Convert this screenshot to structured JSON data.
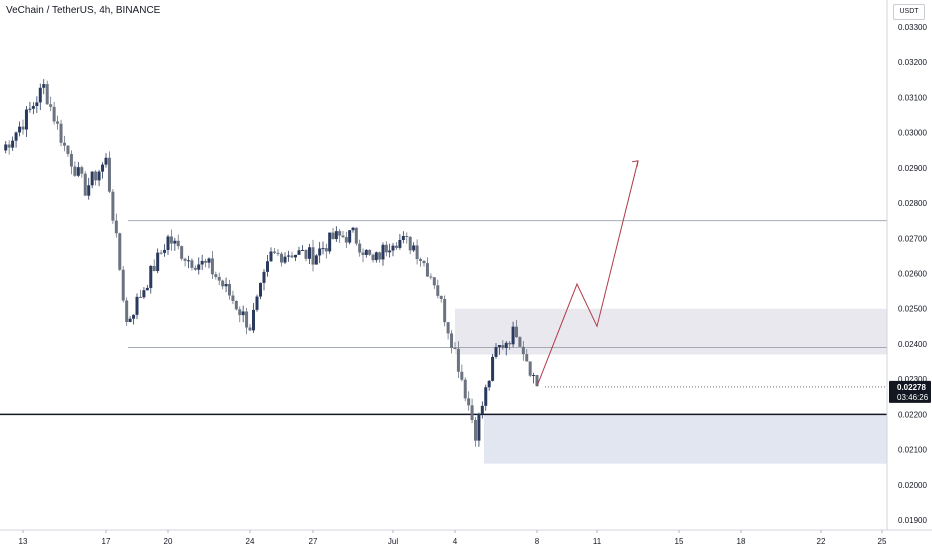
{
  "header": {
    "title": "VeChain / TetherUS, 4h, BINANCE"
  },
  "price_scale": {
    "currency": "USDT",
    "ticks": [
      "0.03300",
      "0.03200",
      "0.03100",
      "0.03000",
      "0.02900",
      "0.02800",
      "0.02700",
      "0.02600",
      "0.02500",
      "0.02400",
      "0.02300",
      "0.02200",
      "0.02100",
      "0.02000",
      "0.01900"
    ],
    "last_price": "0.02278",
    "countdown": "03:46:26"
  },
  "time_axis": {
    "ticks": [
      "13",
      "17",
      "20",
      "24",
      "27",
      "Jul",
      "4",
      "8",
      "11",
      "15",
      "18",
      "22",
      "25"
    ]
  },
  "colors": {
    "bull": "#2a3a5e",
    "bear": "#6b7280",
    "zone_upper": "#e6e4ec",
    "zone_lower": "#dde2ee",
    "projection": "#b03a48",
    "level_line": "#9aa0aa",
    "key_level": "#131722"
  },
  "chart_data": {
    "type": "candlestick",
    "symbol": "VeChain / TetherUS",
    "interval": "4h",
    "exchange": "BINANCE",
    "x_axis": "date (June–July)",
    "ylim": [
      0.0188,
      0.0333
    ],
    "y_ticks": [
      0.033,
      0.032,
      0.031,
      0.03,
      0.029,
      0.028,
      0.027,
      0.026,
      0.025,
      0.024,
      0.023,
      0.022,
      0.021,
      0.02,
      0.019
    ],
    "close_path": [
      {
        "date": "Jun 12",
        "close": 0.0295
      },
      {
        "date": "Jun 13",
        "close": 0.0303
      },
      {
        "date": "Jun 14",
        "close": 0.0313
      },
      {
        "date": "Jun 15",
        "close": 0.0296
      },
      {
        "date": "Jun 16",
        "close": 0.0284
      },
      {
        "date": "Jun 17",
        "close": 0.0292
      },
      {
        "date": "Jun 18",
        "close": 0.0246
      },
      {
        "date": "Jun 19",
        "close": 0.0258
      },
      {
        "date": "Jun 20",
        "close": 0.027
      },
      {
        "date": "Jun 21",
        "close": 0.0264
      },
      {
        "date": "Jun 22",
        "close": 0.0262
      },
      {
        "date": "Jun 23",
        "close": 0.0254
      },
      {
        "date": "Jun 24",
        "close": 0.0245
      },
      {
        "date": "Jun 25",
        "close": 0.0265
      },
      {
        "date": "Jun 26",
        "close": 0.0266
      },
      {
        "date": "Jun 27",
        "close": 0.0265
      },
      {
        "date": "Jun 28",
        "close": 0.027
      },
      {
        "date": "Jun 29",
        "close": 0.0271
      },
      {
        "date": "Jun 30",
        "close": 0.0263
      },
      {
        "date": "Jul 1",
        "close": 0.027
      },
      {
        "date": "Jul 2",
        "close": 0.0268
      },
      {
        "date": "Jul 3",
        "close": 0.0258
      },
      {
        "date": "Jul 4",
        "close": 0.0238
      },
      {
        "date": "Jul 5",
        "close": 0.0215
      },
      {
        "date": "Jul 6",
        "close": 0.0238
      },
      {
        "date": "Jul 7",
        "close": 0.0244
      },
      {
        "date": "Jul 8",
        "close": 0.0228
      }
    ],
    "last_close": 0.02278,
    "horizontal_levels": [
      0.0275,
      0.0239,
      0.022
    ],
    "zones": [
      {
        "from": 0.0237,
        "to": 0.025
      },
      {
        "from": 0.0206,
        "to": 0.022
      }
    ],
    "projection": [
      {
        "date": "Jul 8",
        "price": 0.0228
      },
      {
        "date": "Jul 10",
        "price": 0.0257
      },
      {
        "date": "Jul 11",
        "price": 0.0245
      },
      {
        "date": "Jul 13",
        "price": 0.0292
      }
    ]
  }
}
